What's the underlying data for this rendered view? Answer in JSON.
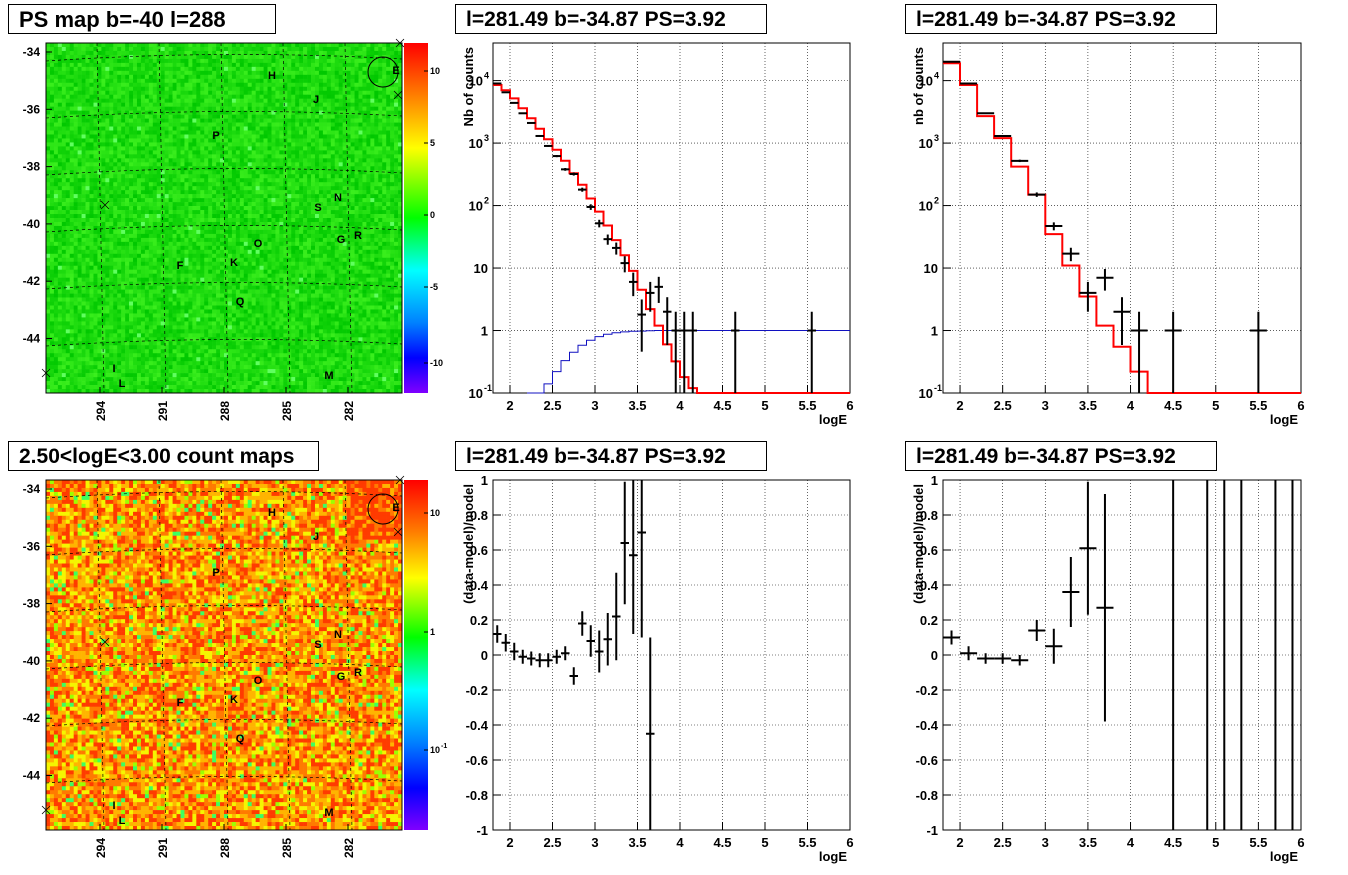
{
  "titles": {
    "ps_map": "PS map b=-40 l=288",
    "count_map": "2.50<logE<3.00 count maps",
    "spec1": "l=281.49 b=-34.87 PS=3.92",
    "spec2": "l=281.49 b=-34.87 PS=3.92",
    "res1": "l=281.49 b=-34.87 PS=3.92",
    "res2": "l=281.49 b=-34.87 PS=3.92"
  },
  "maps": {
    "lat_ticks": [
      "-34",
      "-36",
      "-38",
      "-40",
      "-42",
      "-44"
    ],
    "lon_ticks": [
      "294",
      "291",
      "288",
      "285",
      "282"
    ],
    "sources": [
      "H",
      "J",
      "P",
      "S",
      "N",
      "O",
      "G",
      "R",
      "F",
      "K",
      "Q",
      "I",
      "L",
      "M",
      "E"
    ],
    "colorbar1_ticks": [
      "10",
      "5",
      "0",
      "-5",
      "-10"
    ],
    "colorbar2_ticks": [
      "10",
      "1",
      "10",
      "-1"
    ]
  },
  "chart_data": [
    {
      "id": "spectrum-fine",
      "type": "line",
      "xlabel": "logE",
      "ylabel": "Nb of counts",
      "xlim": [
        1.8,
        6
      ],
      "ylim": [
        0.1,
        40000
      ],
      "yscale": "log",
      "grid": true,
      "x_ticks": [
        "2",
        "2.5",
        "3",
        "3.5",
        "4",
        "4.5",
        "5",
        "5.5",
        "6"
      ],
      "y_ticks": [
        "10^4",
        "10^3",
        "10^2",
        "10",
        "1",
        "10^-1"
      ],
      "data_points": [
        {
          "x": 1.85,
          "y": 9000
        },
        {
          "x": 1.95,
          "y": 6500
        },
        {
          "x": 2.05,
          "y": 4400
        },
        {
          "x": 2.15,
          "y": 3000
        },
        {
          "x": 2.25,
          "y": 2100
        },
        {
          "x": 2.35,
          "y": 1300
        },
        {
          "x": 2.45,
          "y": 900
        },
        {
          "x": 2.55,
          "y": 620
        },
        {
          "x": 2.65,
          "y": 380
        },
        {
          "x": 2.75,
          "y": 320
        },
        {
          "x": 2.85,
          "y": 180
        },
        {
          "x": 2.95,
          "y": 95
        },
        {
          "x": 3.05,
          "y": 52
        },
        {
          "x": 3.15,
          "y": 29
        },
        {
          "x": 3.25,
          "y": 21
        },
        {
          "x": 3.35,
          "y": 12
        },
        {
          "x": 3.45,
          "y": 6
        },
        {
          "x": 3.55,
          "y": 1.8
        },
        {
          "x": 3.65,
          "y": 4
        },
        {
          "x": 3.75,
          "y": 5
        },
        {
          "x": 3.85,
          "y": 2
        },
        {
          "x": 3.95,
          "y": 1
        },
        {
          "x": 4.05,
          "y": 1
        },
        {
          "x": 4.15,
          "y": 1
        },
        {
          "x": 4.65,
          "y": 1
        },
        {
          "x": 5.55,
          "y": 1
        }
      ],
      "model_step": [
        [
          1.8,
          8500
        ],
        [
          1.9,
          7000
        ],
        [
          2.0,
          5200
        ],
        [
          2.1,
          3600
        ],
        [
          2.2,
          2500
        ],
        [
          2.3,
          1700
        ],
        [
          2.4,
          1150
        ],
        [
          2.5,
          780
        ],
        [
          2.6,
          520
        ],
        [
          2.7,
          330
        ],
        [
          2.8,
          215
        ],
        [
          2.9,
          130
        ],
        [
          3.0,
          80
        ],
        [
          3.1,
          48
        ],
        [
          3.2,
          28
        ],
        [
          3.3,
          16
        ],
        [
          3.4,
          9
        ],
        [
          3.5,
          4.5
        ],
        [
          3.6,
          2.2
        ],
        [
          3.7,
          1.2
        ],
        [
          3.8,
          0.6
        ],
        [
          3.9,
          0.32
        ],
        [
          4.0,
          0.18
        ],
        [
          4.1,
          0.12
        ],
        [
          4.2,
          0.1
        ]
      ],
      "efficiency_step": [
        [
          2.2,
          0.06
        ],
        [
          2.3,
          0.09
        ],
        [
          2.4,
          0.14
        ],
        [
          2.5,
          0.22
        ],
        [
          2.6,
          0.33
        ],
        [
          2.7,
          0.45
        ],
        [
          2.8,
          0.58
        ],
        [
          2.9,
          0.7
        ],
        [
          3.0,
          0.8
        ],
        [
          3.1,
          0.87
        ],
        [
          3.2,
          0.92
        ],
        [
          3.3,
          0.95
        ],
        [
          3.4,
          0.97
        ],
        [
          3.5,
          0.98
        ],
        [
          3.6,
          0.99
        ],
        [
          3.7,
          1.0
        ],
        [
          6.0,
          1.0
        ]
      ]
    },
    {
      "id": "spectrum-coarse",
      "type": "line",
      "xlabel": "logE",
      "ylabel": "nb of counts",
      "xlim": [
        1.8,
        6
      ],
      "ylim": [
        0.1,
        40000
      ],
      "yscale": "log",
      "grid": true,
      "x_ticks": [
        "2",
        "2.5",
        "3",
        "3.5",
        "4",
        "4.5",
        "5",
        "5.5",
        "6"
      ],
      "y_ticks": [
        "10^4",
        "10^3",
        "10^2",
        "10",
        "1",
        "10^-1"
      ],
      "data_points": [
        {
          "x": 1.9,
          "y": 20000
        },
        {
          "x": 2.1,
          "y": 9000
        },
        {
          "x": 2.3,
          "y": 3000
        },
        {
          "x": 2.5,
          "y": 1300
        },
        {
          "x": 2.7,
          "y": 520
        },
        {
          "x": 2.9,
          "y": 150
        },
        {
          "x": 3.1,
          "y": 47
        },
        {
          "x": 3.3,
          "y": 17
        },
        {
          "x": 3.5,
          "y": 4
        },
        {
          "x": 3.7,
          "y": 7
        },
        {
          "x": 3.9,
          "y": 2
        },
        {
          "x": 4.1,
          "y": 1
        },
        {
          "x": 4.5,
          "y": 1
        },
        {
          "x": 5.5,
          "y": 1
        }
      ],
      "model_step": [
        [
          1.8,
          19000
        ],
        [
          2.0,
          8500
        ],
        [
          2.2,
          2700
        ],
        [
          2.4,
          1200
        ],
        [
          2.6,
          420
        ],
        [
          2.8,
          150
        ],
        [
          3.0,
          35
        ],
        [
          3.2,
          11
        ],
        [
          3.4,
          3.5
        ],
        [
          3.6,
          1.2
        ],
        [
          3.8,
          0.55
        ],
        [
          4.0,
          0.22
        ],
        [
          4.2,
          0.1
        ]
      ]
    },
    {
      "id": "residual-fine",
      "type": "scatter",
      "xlabel": "logE",
      "ylabel": "(data-model)/model",
      "xlim": [
        1.8,
        6
      ],
      "ylim": [
        -1,
        1
      ],
      "grid": true,
      "x_ticks": [
        "2",
        "2.5",
        "3",
        "3.5",
        "4",
        "4.5",
        "5",
        "5.5",
        "6"
      ],
      "y_ticks": [
        "1",
        "0.8",
        "0.6",
        "0.4",
        "0.2",
        "0",
        "-0.2",
        "-0.4",
        "-0.6",
        "-0.8",
        "-1"
      ],
      "points": [
        {
          "x": 1.85,
          "y": 0.12,
          "err": 0.05
        },
        {
          "x": 1.95,
          "y": 0.07,
          "err": 0.05
        },
        {
          "x": 2.05,
          "y": 0.02,
          "err": 0.05
        },
        {
          "x": 2.15,
          "y": -0.01,
          "err": 0.04
        },
        {
          "x": 2.25,
          "y": -0.02,
          "err": 0.04
        },
        {
          "x": 2.35,
          "y": -0.03,
          "err": 0.04
        },
        {
          "x": 2.45,
          "y": -0.03,
          "err": 0.04
        },
        {
          "x": 2.55,
          "y": -0.01,
          "err": 0.04
        },
        {
          "x": 2.65,
          "y": 0.01,
          "err": 0.04
        },
        {
          "x": 2.75,
          "y": -0.12,
          "err": 0.05
        },
        {
          "x": 2.85,
          "y": 0.18,
          "err": 0.07
        },
        {
          "x": 2.95,
          "y": 0.08,
          "err": 0.09
        },
        {
          "x": 3.05,
          "y": 0.02,
          "err": 0.12
        },
        {
          "x": 3.15,
          "y": 0.09,
          "err": 0.15
        },
        {
          "x": 3.25,
          "y": 0.22,
          "err": 0.25
        },
        {
          "x": 3.35,
          "y": 0.64,
          "err": 0.35
        },
        {
          "x": 3.45,
          "y": 0.57,
          "err": 0.45
        },
        {
          "x": 3.55,
          "y": 0.7,
          "err": 0.6
        },
        {
          "x": 3.65,
          "y": -0.45,
          "err": 0.55
        }
      ]
    },
    {
      "id": "residual-coarse",
      "type": "scatter",
      "xlabel": "logE",
      "ylabel": "(data-model)/model",
      "xlim": [
        1.8,
        6
      ],
      "ylim": [
        -1,
        1
      ],
      "grid": true,
      "x_ticks": [
        "2",
        "2.5",
        "3",
        "3.5",
        "4",
        "4.5",
        "5",
        "5.5",
        "6"
      ],
      "y_ticks": [
        "1",
        "0.8",
        "0.6",
        "0.4",
        "0.2",
        "0",
        "-0.2",
        "-0.4",
        "-0.6",
        "-0.8",
        "-1"
      ],
      "points": [
        {
          "x": 1.9,
          "y": 0.1,
          "err": 0.04
        },
        {
          "x": 2.1,
          "y": 0.01,
          "err": 0.04
        },
        {
          "x": 2.3,
          "y": -0.02,
          "err": 0.03
        },
        {
          "x": 2.5,
          "y": -0.02,
          "err": 0.03
        },
        {
          "x": 2.7,
          "y": -0.03,
          "err": 0.03
        },
        {
          "x": 2.9,
          "y": 0.14,
          "err": 0.06
        },
        {
          "x": 3.1,
          "y": 0.05,
          "err": 0.1
        },
        {
          "x": 3.3,
          "y": 0.36,
          "err": 0.2
        },
        {
          "x": 3.5,
          "y": 0.61,
          "err": 0.38
        },
        {
          "x": 3.7,
          "y": 0.27,
          "err": 0.65
        }
      ],
      "full_bars_x": [
        4.5,
        4.9,
        5.1,
        5.3,
        5.7,
        5.9
      ]
    }
  ]
}
